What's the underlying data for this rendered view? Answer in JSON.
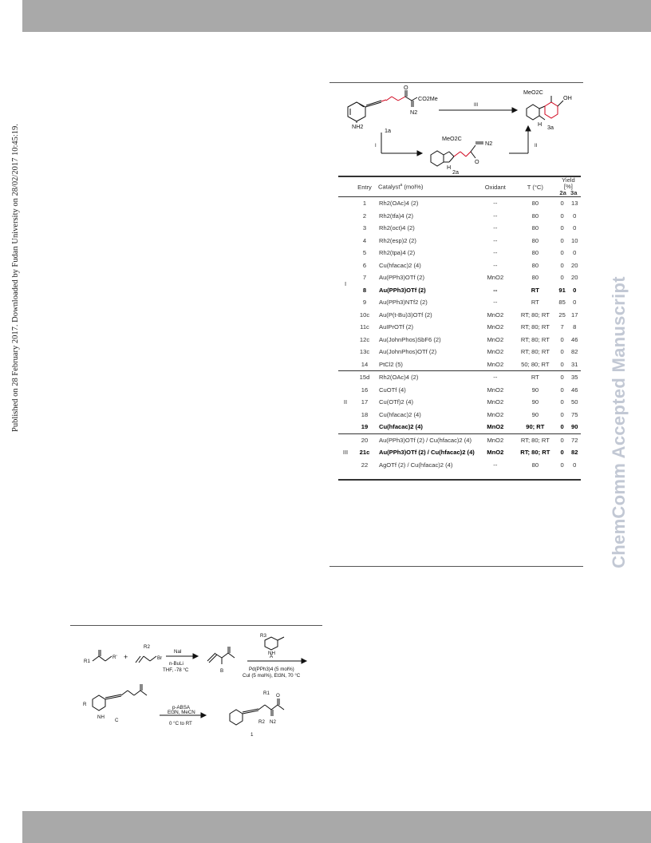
{
  "side_text": "Published on 28 February 2017. Downloaded by Fudan University on 28/02/2017 10:45:19.",
  "watermark": "ChemComm Accepted Manuscript",
  "scheme_top": {
    "compound_1a": "1a",
    "compound_2a": "2a",
    "compound_3a": "3a",
    "arrow_iii": "III",
    "arrow_i": "I",
    "arrow_ii": "II",
    "co2me_1a": "CO2Me",
    "n2_1a": "N2",
    "nh2_1a": "NH2",
    "o_1a": "O",
    "meo2c_2a": "MeO2C",
    "n2_2a": "N2",
    "o_2a": "O",
    "h_2a": "H",
    "meo2c_3a": "MeO2C",
    "oh_3a": "OH",
    "h_3a": "H"
  },
  "table": {
    "headers": {
      "entry": "Entry",
      "catalyst": "Catalyst",
      "catalyst_sup": "a",
      "catalyst_unit": " (mol%)",
      "oxidant": "Oxidant",
      "temp": "T (°C)",
      "yield": "Yield [%]",
      "yield_2a": "2a",
      "yield_3a": "3a"
    },
    "groups": [
      {
        "label": "I",
        "rows": [
          {
            "entry": "1",
            "cat": "Rh2(OAc)4 (2)",
            "ox": "--",
            "t": "80",
            "y2": "0",
            "y3": "13",
            "bold": false
          },
          {
            "entry": "2",
            "cat": "Rh2(tfa)4 (2)",
            "ox": "--",
            "t": "80",
            "y2": "0",
            "y3": "0",
            "bold": false
          },
          {
            "entry": "3",
            "cat": "Rh2(oct)4 (2)",
            "ox": "--",
            "t": "80",
            "y2": "0",
            "y3": "0",
            "bold": false
          },
          {
            "entry": "4",
            "cat": "Rh2(esp)2 (2)",
            "ox": "--",
            "t": "80",
            "y2": "0",
            "y3": "10",
            "bold": false
          },
          {
            "entry": "5",
            "cat": "Rh2(tpa)4 (2)",
            "ox": "--",
            "t": "80",
            "y2": "0",
            "y3": "0",
            "bold": false
          },
          {
            "entry": "6",
            "cat": "Cu(hfacac)2 (4)",
            "ox": "--",
            "t": "80",
            "y2": "0",
            "y3": "20",
            "bold": false
          },
          {
            "entry": "7",
            "cat": "Au(PPh3)OTf (2)",
            "ox": "MnO2",
            "t": "80",
            "y2": "0",
            "y3": "20",
            "bold": false
          },
          {
            "entry": "8",
            "cat": "Au(PPh3)OTf (2)",
            "ox": "--",
            "t": "RT",
            "y2": "91",
            "y3": "0",
            "bold": true
          },
          {
            "entry": "9",
            "cat": "Au(PPh3)NTf2 (2)",
            "ox": "--",
            "t": "RT",
            "y2": "85",
            "y3": "0",
            "bold": false
          },
          {
            "entry": "10c",
            "cat": "Au(P(t-Bu)3)OTf (2)",
            "ox": "MnO2",
            "t": "RT; 80; RT",
            "y2": "25",
            "y3": "17",
            "bold": false
          },
          {
            "entry": "11c",
            "cat": "AuIPrOTf (2)",
            "ox": "MnO2",
            "t": "RT; 80; RT",
            "y2": "7",
            "y3": "8",
            "bold": false
          },
          {
            "entry": "12c",
            "cat": "Au(JohnPhos)SbF6 (2)",
            "ox": "MnO2",
            "t": "RT; 80; RT",
            "y2": "0",
            "y3": "46",
            "bold": false
          },
          {
            "entry": "13c",
            "cat": "Au(JohnPhos)OTf (2)",
            "ox": "MnO2",
            "t": "RT; 80; RT",
            "y2": "0",
            "y3": "82",
            "bold": false
          },
          {
            "entry": "14",
            "cat": "PtCl2 (5)",
            "ox": "MnO2",
            "t": "50; 80; RT",
            "y2": "0",
            "y3": "31",
            "bold": false
          }
        ]
      },
      {
        "label": "II",
        "rows": [
          {
            "entry": "15d",
            "cat": "Rh2(OAc)4 (2)",
            "ox": "--",
            "t": "RT",
            "y2": "0",
            "y3": "35",
            "bold": false
          },
          {
            "entry": "16",
            "cat": "CuOTf (4)",
            "ox": "MnO2",
            "t": "90",
            "y2": "0",
            "y3": "46",
            "bold": false
          },
          {
            "entry": "17",
            "cat": "Cu(OTf)2 (4)",
            "ox": "MnO2",
            "t": "90",
            "y2": "0",
            "y3": "50",
            "bold": false
          },
          {
            "entry": "18",
            "cat": "Cu(hfacac)2 (4)",
            "ox": "MnO2",
            "t": "90",
            "y2": "0",
            "y3": "75",
            "bold": false
          },
          {
            "entry": "19",
            "cat": "Cu(hfacac)2 (4)",
            "ox": "MnO2",
            "t": "90; RT",
            "y2": "0",
            "y3": "90",
            "bold": true
          }
        ]
      },
      {
        "label": "III",
        "rows": [
          {
            "entry": "20",
            "cat": "Au(PPh3)OTf (2) / Cu(hfacac)2 (4)",
            "ox": "MnO2",
            "t": "RT; 80; RT",
            "y2": "0",
            "y3": "72",
            "bold": false
          },
          {
            "entry": "21c",
            "cat": "Au(PPh3)OTf (2) / Cu(hfacac)2 (4)",
            "ox": "MnO2",
            "t": "RT; 80; RT",
            "y2": "0",
            "y3": "82",
            "bold": true
          },
          {
            "entry": "22",
            "cat": "AgOTf (2) / Cu(hfacac)2 (4)",
            "ox": "--",
            "t": "80",
            "y2": "0",
            "y3": "0",
            "bold": false
          }
        ]
      }
    ]
  },
  "scheme_bottom": {
    "r_start": "R1",
    "r_prime": "R'",
    "plus": "+",
    "r2_bromide": "R2",
    "br": "Br",
    "reagent_nai": "NaI",
    "reagent_nbuli": "n-BuLi",
    "reagent_thf": "THF, -78 °C",
    "label_b": "B",
    "label_a": "A",
    "r3_a": "R3",
    "nh_a": "NH",
    "cond_pd": "Pd(PPh3)4 (5 mol%)",
    "cond_cu": "CuI (5 mol%), Et3N, 70 °C",
    "reagent_pabsa": "p-ABSA",
    "reagent_et3n": "Et3N, MeCN",
    "cond_rt": "0 °C to RT",
    "label_c": "C",
    "label_1": "1",
    "r_sub": "R",
    "r1_label": "R1",
    "r2_label": "R2",
    "n2_label": "N2",
    "o_label": "O",
    "nh_label": "NH"
  }
}
